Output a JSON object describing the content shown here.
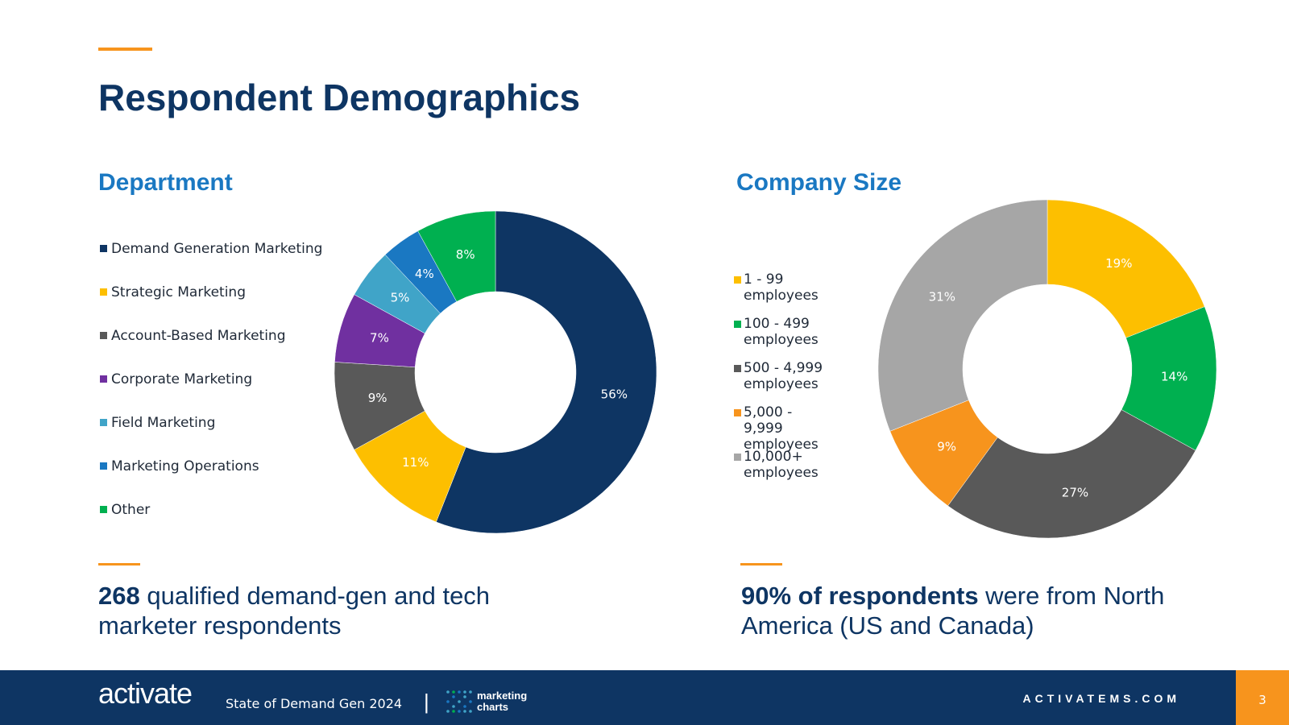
{
  "title": "Respondent Demographics",
  "charts_meta": {
    "department_title": "Department",
    "company_size_title": "Company Size"
  },
  "stats": {
    "left_bold": "268",
    "left_text": " qualified demand-gen and tech marketer respondents",
    "right_bold": "90% of respondents",
    "right_text": " were from North America (US and Canada)"
  },
  "footer": {
    "logo": "activate",
    "report": "State of Demand Gen 2024",
    "separator": "|",
    "partner_line1": "marketing",
    "partner_line2": "charts",
    "site": "ACTIVATEMS.COM",
    "page": "3"
  },
  "colors": {
    "navy": "#0e3563",
    "blue_heading": "#1a78c2",
    "orange_accent": "#f7941d"
  },
  "chart_data": [
    {
      "type": "pie",
      "title": "Department",
      "donut": true,
      "legend": "left",
      "categories": [
        "Demand Generation Marketing",
        "Strategic Marketing",
        "Account-Based Marketing",
        "Corporate Marketing",
        "Field Marketing",
        "Marketing Operations",
        "Other"
      ],
      "values": [
        56,
        11,
        9,
        7,
        5,
        4,
        8
      ],
      "labels": [
        "56%",
        "11%",
        "9%",
        "7%",
        "5%",
        "4%",
        "8%"
      ],
      "colors": [
        "#0e3563",
        "#fdbf00",
        "#595959",
        "#7030a0",
        "#40a4c8",
        "#1a78c2",
        "#00b050"
      ]
    },
    {
      "type": "pie",
      "title": "Company Size",
      "donut": true,
      "legend": "left",
      "categories": [
        "1 - 99 employees",
        "100 - 499 employees",
        "500 - 4,999 employees",
        "5,000 - 9,999 employees",
        "10,000+ employees"
      ],
      "values": [
        19,
        14,
        27,
        9,
        31
      ],
      "labels": [
        "19%",
        "14%",
        "27%",
        "9%",
        "31%"
      ],
      "colors": [
        "#fdbf00",
        "#00b050",
        "#595959",
        "#f7941d",
        "#a6a6a6"
      ]
    }
  ]
}
